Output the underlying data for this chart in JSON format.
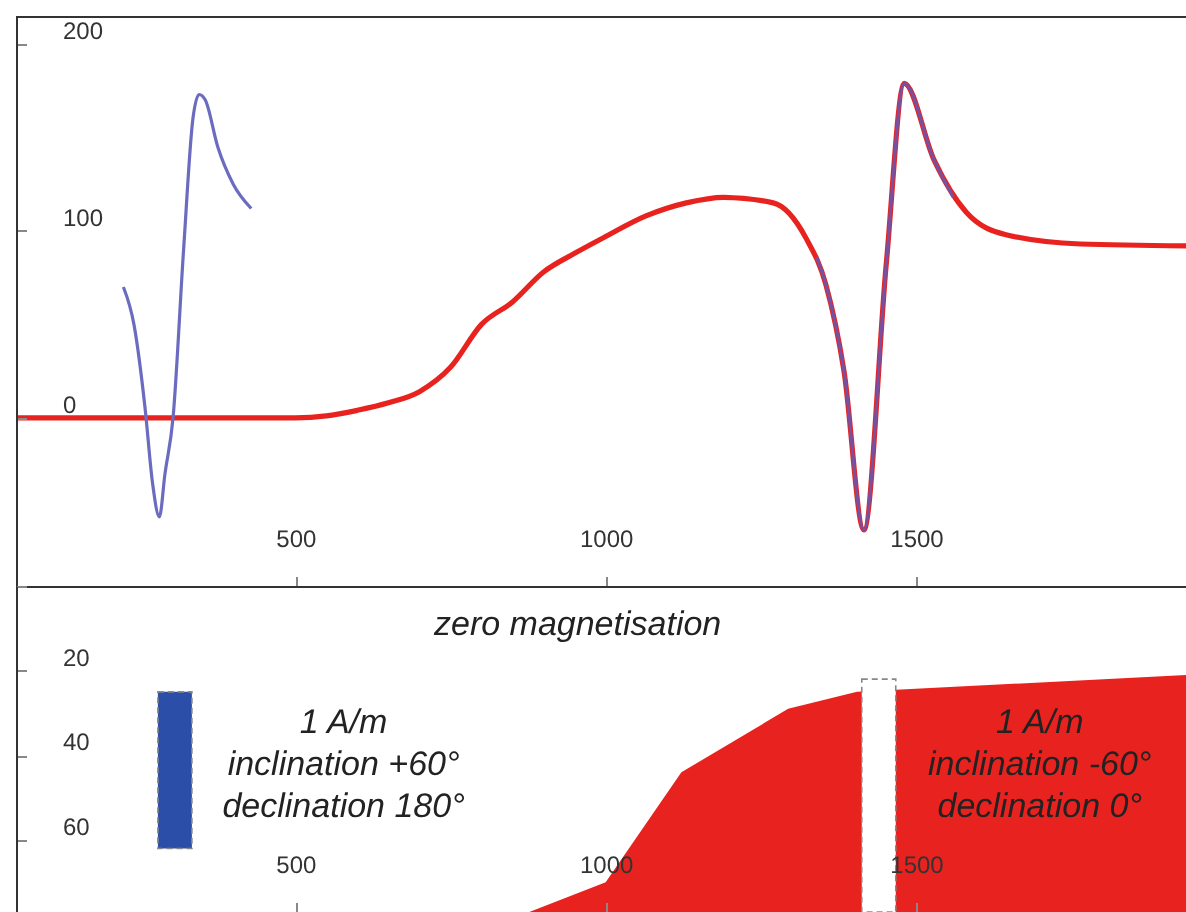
{
  "chart_data": [
    {
      "type": "line",
      "xlim": [
        50,
        1935
      ],
      "xticks": [
        500,
        1000,
        1500
      ],
      "ylim": [
        -90,
        215
      ],
      "yticks": [
        0,
        100,
        200
      ],
      "grid": false,
      "marker": "none",
      "line_style": "solid",
      "series": [
        {
          "color": "#e8231f",
          "x": [
            50,
            500,
            550,
            600,
            650,
            700,
            750,
            800,
            850,
            900,
            950,
            1000,
            1065,
            1130,
            1190,
            1270,
            1323,
            1355,
            1384,
            1416,
            1452,
            1481,
            1529,
            1581,
            1645,
            1765,
            1935
          ],
          "values": [
            0,
            0,
            1,
            4,
            8,
            14,
            27,
            50,
            62,
            78,
            88,
            97,
            108,
            115,
            118,
            115,
            96,
            71,
            25,
            -60,
            82,
            179,
            138,
            110,
            98,
            93,
            92
          ]
        },
        {
          "color": "#6b6bc0",
          "x": [
            223,
            240,
            258,
            270,
            281,
            290,
            303,
            320,
            335,
            345,
            355,
            375,
            400,
            429
          ],
          "values": [
            70,
            50,
            5,
            -35,
            -53,
            -30,
            0,
            90,
            160,
            173,
            170,
            145,
            125,
            112
          ]
        },
        {
          "color": "#7a4f9f",
          "x": [
            1340,
            1355,
            1384,
            1416,
            1452,
            1481,
            1529,
            1560
          ],
          "values": [
            86,
            71,
            25,
            -60,
            82,
            179,
            138,
            118
          ]
        }
      ]
    },
    {
      "type": "area",
      "xlim": [
        50,
        1935
      ],
      "xticks": [
        500,
        1000,
        1500
      ],
      "ylim": [
        77,
        0
      ],
      "yticks": [
        {
          "value": 0,
          "label": null
        },
        20,
        40,
        60
      ],
      "grid": false,
      "series": [
        {
          "color": "#e8231f",
          "x": [
            877,
            1000,
            1122,
            1294,
            1405,
            1935
          ],
          "values": [
            77,
            70,
            44,
            29,
            25,
            21
          ]
        },
        {
          "type": "bar",
          "color": "#2b4fa8",
          "x": [
            306
          ],
          "values": [
            37
          ],
          "base": [
            25
          ]
        },
        {
          "type": "bar",
          "color": "#ffffff",
          "x": [
            1440
          ],
          "values": [
            55
          ],
          "base": [
            22
          ]
        }
      ],
      "annotations": [
        "zero magnetisation",
        "1 A/m\ninclination +60°\ndeclination 180°",
        "1 A/m\ninclination -60°\ndeclination 0°"
      ]
    }
  ]
}
